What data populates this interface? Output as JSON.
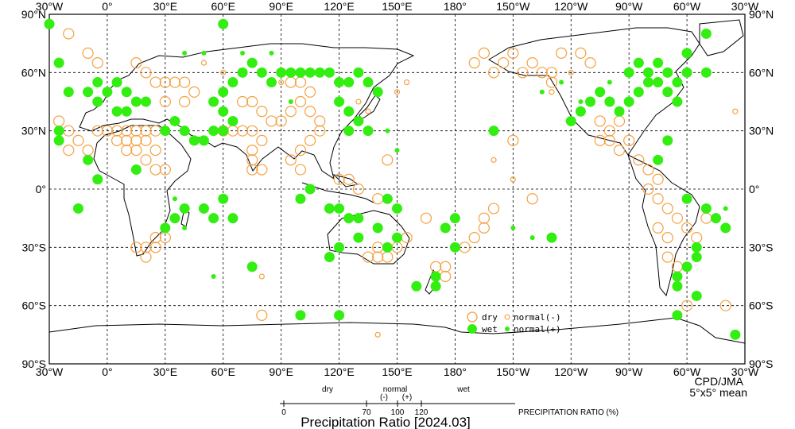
{
  "map": {
    "title": "Precipitation Ratio [2024.03]",
    "credit": "CPD/JMA",
    "credit_sub": "5°x5° mean",
    "lon_labels": [
      "30°W",
      "0°",
      "30°E",
      "60°E",
      "90°E",
      "120°E",
      "150°E",
      "180°",
      "150°W",
      "120°W",
      "90°W",
      "60°W",
      "30°W"
    ],
    "lat_labels": [
      "90°N",
      "60°N",
      "30°N",
      "0°",
      "30°S",
      "60°S",
      "90°S"
    ],
    "colors": {
      "dry": "#f5a040",
      "wet": "#33ee11",
      "line": "#000000"
    },
    "legend": {
      "dry": "dry",
      "wet": "wet",
      "normal_minus": "normal(-)",
      "normal_plus": "normal(+)"
    },
    "scale": {
      "dry_label": "dry",
      "normal_label": "normal",
      "normal_minus": "(-)",
      "normal_plus": "(+)",
      "wet_label": "wet",
      "ticks": [
        "0",
        "70",
        "100",
        "120"
      ],
      "axis_label": "PRECIPITATION RATIO (%)"
    }
  },
  "chart_data": {
    "type": "scatter",
    "title": "Precipitation Ratio [2024.03]",
    "unit": "%",
    "grid": "5°x5° mean",
    "categories": [
      "dry",
      "normal(-)",
      "normal(+)",
      "wet"
    ],
    "points_dry": [
      [
        -20,
        80
      ],
      [
        -10,
        70
      ],
      [
        -5,
        65
      ],
      [
        15,
        65
      ],
      [
        20,
        60
      ],
      [
        25,
        55
      ],
      [
        30,
        55
      ],
      [
        35,
        55
      ],
      [
        40,
        55
      ],
      [
        45,
        50
      ],
      [
        40,
        45
      ],
      [
        30,
        45
      ],
      [
        -25,
        35
      ],
      [
        -20,
        30
      ],
      [
        -15,
        25
      ],
      [
        -10,
        20
      ],
      [
        -20,
        20
      ],
      [
        -5,
        30
      ],
      [
        0,
        30
      ],
      [
        5,
        30
      ],
      [
        10,
        30
      ],
      [
        15,
        30
      ],
      [
        20,
        30
      ],
      [
        25,
        30
      ],
      [
        5,
        25
      ],
      [
        10,
        25
      ],
      [
        15,
        25
      ],
      [
        20,
        25
      ],
      [
        25,
        20
      ],
      [
        10,
        20
      ],
      [
        15,
        20
      ],
      [
        20,
        15
      ],
      [
        25,
        10
      ],
      [
        30,
        10
      ],
      [
        60,
        30
      ],
      [
        65,
        30
      ],
      [
        70,
        30
      ],
      [
        75,
        30
      ],
      [
        80,
        25
      ],
      [
        75,
        20
      ],
      [
        75,
        15
      ],
      [
        75,
        10
      ],
      [
        80,
        10
      ],
      [
        95,
        55
      ],
      [
        100,
        55
      ],
      [
        105,
        50
      ],
      [
        100,
        45
      ],
      [
        95,
        40
      ],
      [
        90,
        35
      ],
      [
        85,
        35
      ],
      [
        80,
        40
      ],
      [
        75,
        45
      ],
      [
        70,
        45
      ],
      [
        105,
        40
      ],
      [
        110,
        35
      ],
      [
        110,
        30
      ],
      [
        105,
        25
      ],
      [
        100,
        20
      ],
      [
        95,
        15
      ],
      [
        100,
        10
      ],
      [
        120,
        5
      ],
      [
        125,
        5
      ],
      [
        130,
        0
      ],
      [
        140,
        -5
      ],
      [
        145,
        15
      ],
      [
        30,
        -25
      ],
      [
        25,
        -30
      ],
      [
        20,
        -30
      ],
      [
        15,
        -30
      ],
      [
        20,
        -35
      ],
      [
        25,
        -25
      ],
      [
        140,
        -30
      ],
      [
        145,
        -35
      ],
      [
        140,
        -35
      ],
      [
        135,
        -35
      ],
      [
        150,
        -30
      ],
      [
        155,
        -25
      ],
      [
        170,
        -40
      ],
      [
        175,
        -40
      ],
      [
        175,
        -45
      ],
      [
        165,
        -15
      ],
      [
        -170,
        -25
      ],
      [
        -175,
        -30
      ],
      [
        -165,
        -20
      ],
      [
        -150,
        70
      ],
      [
        -155,
        65
      ],
      [
        -160,
        60
      ],
      [
        -165,
        70
      ],
      [
        -170,
        65
      ],
      [
        -145,
        60
      ],
      [
        -140,
        65
      ],
      [
        -135,
        60
      ],
      [
        -130,
        55
      ],
      [
        -130,
        60
      ],
      [
        -125,
        70
      ],
      [
        -115,
        70
      ],
      [
        -110,
        65
      ],
      [
        -105,
        25
      ],
      [
        -100,
        25
      ],
      [
        -95,
        20
      ],
      [
        -100,
        30
      ],
      [
        -105,
        35
      ],
      [
        -95,
        35
      ],
      [
        -90,
        25
      ],
      [
        -85,
        15
      ],
      [
        -80,
        10
      ],
      [
        -75,
        5
      ],
      [
        -80,
        0
      ],
      [
        -75,
        -5
      ],
      [
        -70,
        -10
      ],
      [
        -65,
        -15
      ],
      [
        -60,
        -20
      ],
      [
        -55,
        -25
      ],
      [
        -50,
        -15
      ],
      [
        -75,
        -20
      ],
      [
        -70,
        -25
      ],
      [
        -70,
        -35
      ],
      [
        -65,
        -40
      ],
      [
        -150,
        25
      ],
      [
        -140,
        -5
      ],
      [
        -160,
        -10
      ],
      [
        -165,
        -15
      ],
      [
        -60,
        -60
      ],
      [
        -40,
        -60
      ],
      [
        80,
        -65
      ]
    ],
    "points_wet": [
      [
        60,
        85
      ],
      [
        -5,
        55
      ],
      [
        0,
        50
      ],
      [
        5,
        55
      ],
      [
        10,
        50
      ],
      [
        15,
        45
      ],
      [
        20,
        45
      ],
      [
        10,
        40
      ],
      [
        5,
        40
      ],
      [
        -5,
        45
      ],
      [
        -10,
        50
      ],
      [
        -20,
        50
      ],
      [
        -25,
        30
      ],
      [
        -25,
        25
      ],
      [
        -10,
        15
      ],
      [
        -5,
        5
      ],
      [
        15,
        10
      ],
      [
        -15,
        -10
      ],
      [
        30,
        30
      ],
      [
        35,
        35
      ],
      [
        40,
        30
      ],
      [
        45,
        25
      ],
      [
        50,
        25
      ],
      [
        55,
        30
      ],
      [
        60,
        30
      ],
      [
        65,
        35
      ],
      [
        60,
        40
      ],
      [
        55,
        45
      ],
      [
        60,
        50
      ],
      [
        65,
        55
      ],
      [
        70,
        60
      ],
      [
        75,
        65
      ],
      [
        80,
        60
      ],
      [
        85,
        55
      ],
      [
        90,
        60
      ],
      [
        95,
        60
      ],
      [
        100,
        60
      ],
      [
        105,
        60
      ],
      [
        110,
        60
      ],
      [
        115,
        60
      ],
      [
        120,
        55
      ],
      [
        125,
        55
      ],
      [
        130,
        60
      ],
      [
        135,
        55
      ],
      [
        140,
        50
      ],
      [
        120,
        45
      ],
      [
        125,
        40
      ],
      [
        130,
        35
      ],
      [
        135,
        30
      ],
      [
        125,
        30
      ],
      [
        60,
        -5
      ],
      [
        55,
        -15
      ],
      [
        50,
        -10
      ],
      [
        40,
        -10
      ],
      [
        35,
        -15
      ],
      [
        30,
        -20
      ],
      [
        65,
        -15
      ],
      [
        75,
        -40
      ],
      [
        100,
        -5
      ],
      [
        105,
        0
      ],
      [
        115,
        -10
      ],
      [
        120,
        -10
      ],
      [
        125,
        -15
      ],
      [
        130,
        -15
      ],
      [
        140,
        -20
      ],
      [
        150,
        -10
      ],
      [
        145,
        -5
      ],
      [
        115,
        -35
      ],
      [
        120,
        -30
      ],
      [
        130,
        -25
      ],
      [
        145,
        -30
      ],
      [
        150,
        -25
      ],
      [
        160,
        -50
      ],
      [
        170,
        -45
      ],
      [
        170,
        -50
      ],
      [
        180,
        -30
      ],
      [
        175,
        -20
      ],
      [
        180,
        -15
      ],
      [
        -160,
        30
      ],
      [
        -120,
        35
      ],
      [
        -115,
        40
      ],
      [
        -110,
        45
      ],
      [
        -105,
        50
      ],
      [
        -100,
        45
      ],
      [
        -95,
        40
      ],
      [
        -90,
        45
      ],
      [
        -85,
        50
      ],
      [
        -80,
        55
      ],
      [
        -75,
        55
      ],
      [
        -70,
        50
      ],
      [
        -65,
        45
      ],
      [
        -90,
        60
      ],
      [
        -85,
        65
      ],
      [
        -80,
        60
      ],
      [
        -75,
        65
      ],
      [
        -70,
        60
      ],
      [
        -65,
        55
      ],
      [
        -60,
        60
      ],
      [
        -50,
        60
      ],
      [
        -60,
        70
      ],
      [
        -50,
        80
      ],
      [
        -30,
        85
      ],
      [
        -25,
        65
      ],
      [
        -70,
        25
      ],
      [
        -75,
        15
      ],
      [
        -60,
        -5
      ],
      [
        -50,
        -10
      ],
      [
        -45,
        -15
      ],
      [
        -40,
        -20
      ],
      [
        -55,
        -35
      ],
      [
        -55,
        -30
      ],
      [
        -60,
        -40
      ],
      [
        -65,
        -45
      ],
      [
        -65,
        -50
      ],
      [
        -55,
        -55
      ],
      [
        -65,
        -65
      ],
      [
        -130,
        -25
      ],
      [
        100,
        -65
      ],
      [
        120,
        -65
      ],
      [
        -35,
        -75
      ]
    ],
    "points_normal_minus": [
      [
        50,
        65
      ],
      [
        60,
        60
      ],
      [
        90,
        55
      ],
      [
        130,
        45
      ],
      [
        135,
        40
      ],
      [
        150,
        50
      ],
      [
        155,
        55
      ],
      [
        -160,
        15
      ],
      [
        -150,
        5
      ],
      [
        -130,
        50
      ],
      [
        -120,
        60
      ],
      [
        -35,
        40
      ],
      [
        80,
        -45
      ],
      [
        140,
        -75
      ]
    ],
    "points_normal_plus": [
      [
        40,
        70
      ],
      [
        50,
        70
      ],
      [
        70,
        70
      ],
      [
        85,
        70
      ],
      [
        95,
        45
      ],
      [
        150,
        20
      ],
      [
        145,
        30
      ],
      [
        -135,
        50
      ],
      [
        -125,
        55
      ],
      [
        -115,
        45
      ],
      [
        -100,
        55
      ],
      [
        35,
        -5
      ],
      [
        40,
        -20
      ],
      [
        55,
        -45
      ],
      [
        -140,
        -25
      ],
      [
        -150,
        -20
      ],
      [
        -40,
        -10
      ]
    ]
  }
}
